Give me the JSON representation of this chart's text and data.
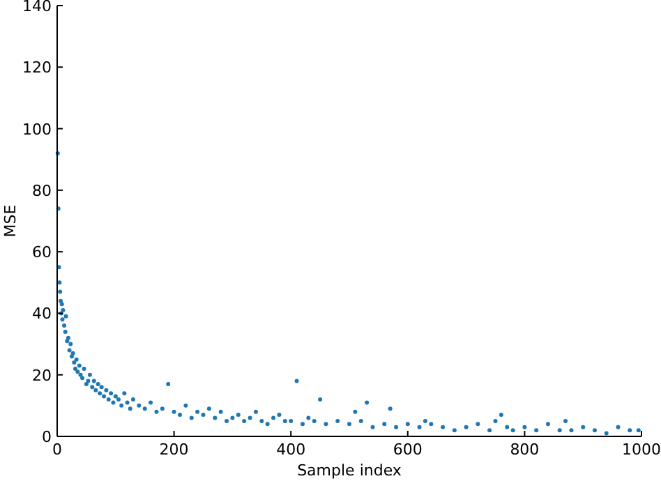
{
  "chart_data": {
    "type": "scatter",
    "xlabel": "Sample index",
    "ylabel": "MSE",
    "xlim": [
      0,
      1000
    ],
    "ylim": [
      0,
      140
    ],
    "xticks": [
      0,
      200,
      400,
      600,
      800,
      1000
    ],
    "yticks": [
      0,
      20,
      40,
      60,
      80,
      100,
      120,
      140
    ],
    "grid": false,
    "marker": "circle",
    "series": [
      {
        "color": "#1f77b4",
        "x": [
          1,
          2,
          3,
          4,
          5,
          6,
          7,
          8,
          9,
          10,
          12,
          14,
          15,
          17,
          19,
          21,
          23,
          25,
          27,
          29,
          31,
          33,
          35,
          38,
          40,
          43,
          46,
          50,
          53,
          56,
          60,
          63,
          66,
          70,
          73,
          76,
          80,
          84,
          88,
          92,
          96,
          100,
          105,
          110,
          115,
          120,
          125,
          130,
          140,
          150,
          160,
          170,
          180,
          190,
          200,
          210,
          220,
          230,
          240,
          250,
          260,
          270,
          280,
          290,
          300,
          310,
          320,
          330,
          340,
          350,
          360,
          370,
          380,
          390,
          400,
          410,
          420,
          430,
          440,
          450,
          460,
          480,
          500,
          510,
          520,
          530,
          540,
          560,
          570,
          580,
          600,
          620,
          630,
          640,
          660,
          680,
          700,
          720,
          740,
          750,
          760,
          770,
          780,
          800,
          820,
          840,
          860,
          870,
          880,
          900,
          920,
          940,
          960,
          980,
          995
        ],
        "values": [
          92,
          74,
          55,
          50,
          47,
          44,
          40,
          43,
          38,
          41,
          36,
          34,
          39,
          31,
          32,
          28,
          30,
          26,
          27,
          24,
          22,
          25,
          21,
          23,
          20,
          19,
          22,
          17,
          18,
          20,
          16,
          18,
          15,
          17,
          14,
          16,
          13,
          15,
          12,
          14,
          11,
          13,
          12,
          10,
          14,
          11,
          9,
          12,
          10,
          9,
          11,
          8,
          9,
          17,
          8,
          7,
          10,
          6,
          8,
          7,
          9,
          6,
          8,
          5,
          6,
          7,
          5,
          6,
          8,
          5,
          4,
          6,
          7,
          5,
          5,
          18,
          4,
          6,
          5,
          12,
          4,
          5,
          4,
          8,
          5,
          11,
          3,
          4,
          9,
          3,
          4,
          3,
          5,
          4,
          3,
          2,
          3,
          4,
          2,
          5,
          7,
          3,
          2,
          3,
          2,
          4,
          2,
          5,
          2,
          3,
          2,
          1,
          3,
          2,
          2
        ]
      }
    ]
  }
}
